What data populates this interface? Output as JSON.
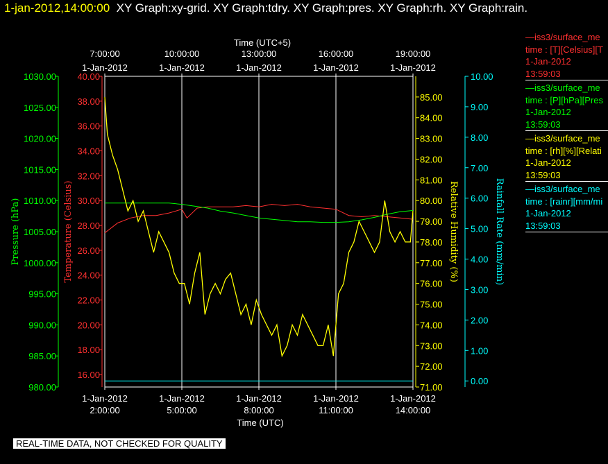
{
  "header": {
    "timestamp": "1-jan-2012,14:00:00",
    "graphs": "XY Graph:xy-grid.  XY Graph:tdry.  XY Graph:pres.  XY Graph:rh.  XY Graph:rain."
  },
  "legend": [
    {
      "line1": "—iss3/surface_me",
      "line2": "time : [T][Celsius][T",
      "line3": "1-Jan-2012",
      "line4": "13:59:03",
      "color": "#ff3030"
    },
    {
      "line1": "—iss3/surface_me",
      "line2": "time : [P][hPa][Pres",
      "line3": "1-Jan-2012",
      "line4": "13:59:03",
      "color": "#00ff00"
    },
    {
      "line1": "—iss3/surface_me",
      "line2": "time : [rh][%][Relati",
      "line3": "1-Jan-2012",
      "line4": "13:59:03",
      "color": "#ffff00"
    },
    {
      "line1": "—iss3/surface_me",
      "line2": "time : [rainr][mm/mi",
      "line3": "1-Jan-2012",
      "line4": "13:59:03",
      "color": "#00ffff"
    }
  ],
  "footer": {
    "note": "REAL-TIME DATA, NOT CHECKED FOR QUALITY"
  },
  "chart_data": {
    "type": "line",
    "top_axis": {
      "label": "Time (UTC+5)",
      "ticks": [
        {
          "time": "7:00:00",
          "date": "1-Jan-2012"
        },
        {
          "time": "10:00:00",
          "date": "1-Jan-2012"
        },
        {
          "time": "13:00:00",
          "date": "1-Jan-2012"
        },
        {
          "time": "16:00:00",
          "date": "1-Jan-2012"
        },
        {
          "time": "19:00:00",
          "date": "1-Jan-2012"
        }
      ]
    },
    "bottom_axis": {
      "label": "Time (UTC)",
      "ticks": [
        {
          "date": "1-Jan-2012",
          "time": "2:00:00"
        },
        {
          "date": "1-Jan-2012",
          "time": "5:00:00"
        },
        {
          "date": "1-Jan-2012",
          "time": "8:00:00"
        },
        {
          "date": "1-Jan-2012",
          "time": "11:00:00"
        },
        {
          "date": "1-Jan-2012",
          "time": "14:00:00"
        }
      ]
    },
    "xlim_hours_utc": [
      2,
      14
    ],
    "grid": "vertical",
    "legend_position": "right",
    "axes": {
      "pressure": {
        "label": "Pressure (hPa)",
        "color": "#00ff00",
        "ylim": [
          980,
          1030
        ],
        "ticks": [
          "980.00",
          "985.00",
          "990.00",
          "995.00",
          "1000.00",
          "1005.00",
          "1010.00",
          "1015.00",
          "1020.00",
          "1025.00",
          "1030.00"
        ]
      },
      "temperature": {
        "label": "Temperature (Celsius)",
        "color": "#ff3030",
        "ylim": [
          15,
          40
        ],
        "ticks": [
          "16.00",
          "18.00",
          "20.00",
          "22.00",
          "24.00",
          "26.00",
          "28.00",
          "30.00",
          "32.00",
          "34.00",
          "36.00",
          "38.00",
          "40.00"
        ]
      },
      "humidity": {
        "label": "Relative Humidity (%)",
        "color": "#ffff00",
        "ylim": [
          71,
          86
        ],
        "ticks": [
          "71.00",
          "72.00",
          "73.00",
          "74.00",
          "75.00",
          "76.00",
          "77.00",
          "78.00",
          "79.00",
          "80.00",
          "81.00",
          "82.00",
          "83.00",
          "84.00",
          "85.00"
        ]
      },
      "rain": {
        "label": "Rainfall Rate (mm/min)",
        "color": "#00ffff",
        "ylim": [
          -0.2,
          10
        ],
        "ticks": [
          "0.00",
          "1.00",
          "2.00",
          "3.00",
          "4.00",
          "5.00",
          "6.00",
          "7.00",
          "8.00",
          "9.00",
          "10.00"
        ]
      }
    },
    "series": [
      {
        "axis": "temperature",
        "color": "#ff3030",
        "x": [
          2,
          2.5,
          3,
          3.5,
          4,
          4.5,
          5,
          5.2,
          5.6,
          6,
          6.5,
          7,
          7.5,
          8,
          8.5,
          9,
          9.5,
          10,
          10.5,
          11,
          11.5,
          12,
          12.5,
          13,
          13.5,
          14
        ],
        "values": [
          27.4,
          28.2,
          28.6,
          28.8,
          28.8,
          29.0,
          29.3,
          28.6,
          29.4,
          29.5,
          29.5,
          29.5,
          29.6,
          29.5,
          29.7,
          29.6,
          29.7,
          29.5,
          29.4,
          29.3,
          28.8,
          28.7,
          28.8,
          28.7,
          28.6,
          28.5
        ]
      },
      {
        "axis": "pressure",
        "color": "#00ff00",
        "x": [
          2,
          2.5,
          3,
          3.5,
          4,
          4.5,
          5,
          5.5,
          6,
          6.5,
          7,
          7.5,
          8,
          8.5,
          9,
          9.5,
          10,
          10.5,
          11,
          11.5,
          12,
          12.5,
          13,
          13.5,
          14
        ],
        "values": [
          1009.6,
          1009.6,
          1009.6,
          1009.6,
          1009.6,
          1009.6,
          1009.4,
          1009.1,
          1008.8,
          1008.3,
          1008.0,
          1007.6,
          1007.2,
          1007.0,
          1006.8,
          1006.6,
          1006.6,
          1006.5,
          1006.5,
          1006.6,
          1006.9,
          1007.3,
          1007.8,
          1008.2,
          1008.4
        ]
      },
      {
        "axis": "humidity",
        "color": "#ffff00",
        "x": [
          2,
          2.1,
          2.3,
          2.5,
          2.7,
          2.9,
          3.1,
          3.3,
          3.5,
          3.7,
          3.9,
          4.1,
          4.3,
          4.5,
          4.7,
          4.9,
          5.1,
          5.3,
          5.5,
          5.7,
          5.9,
          6.1,
          6.3,
          6.5,
          6.7,
          6.9,
          7.1,
          7.3,
          7.5,
          7.7,
          7.9,
          8.1,
          8.3,
          8.5,
          8.7,
          8.9,
          9.1,
          9.3,
          9.5,
          9.7,
          9.9,
          10.1,
          10.3,
          10.5,
          10.7,
          10.9,
          11.1,
          11.3,
          11.5,
          11.7,
          11.9,
          12.1,
          12.3,
          12.5,
          12.7,
          12.9,
          13.1,
          13.3,
          13.5,
          13.7,
          13.9,
          14
        ],
        "values": [
          85.0,
          83.2,
          82.2,
          81.5,
          80.5,
          79.5,
          80.0,
          79.0,
          79.5,
          78.5,
          77.5,
          78.5,
          78.0,
          77.5,
          76.5,
          76.0,
          76.0,
          75.0,
          76.5,
          77.5,
          74.5,
          75.5,
          76.0,
          75.5,
          76.2,
          76.5,
          75.5,
          74.5,
          75.0,
          74.0,
          75.2,
          74.5,
          74.0,
          73.5,
          74.0,
          72.5,
          73.0,
          74.0,
          73.5,
          74.5,
          74.0,
          73.5,
          73.0,
          73.0,
          74.0,
          72.5,
          75.5,
          76.0,
          77.5,
          78.0,
          79.0,
          78.5,
          78.0,
          77.5,
          78.0,
          80.0,
          78.5,
          78.0,
          78.5,
          78.0,
          78.0,
          79.5
        ]
      },
      {
        "axis": "rain",
        "color": "#00ffff",
        "x": [
          2,
          14
        ],
        "values": [
          0,
          0
        ]
      }
    ]
  }
}
